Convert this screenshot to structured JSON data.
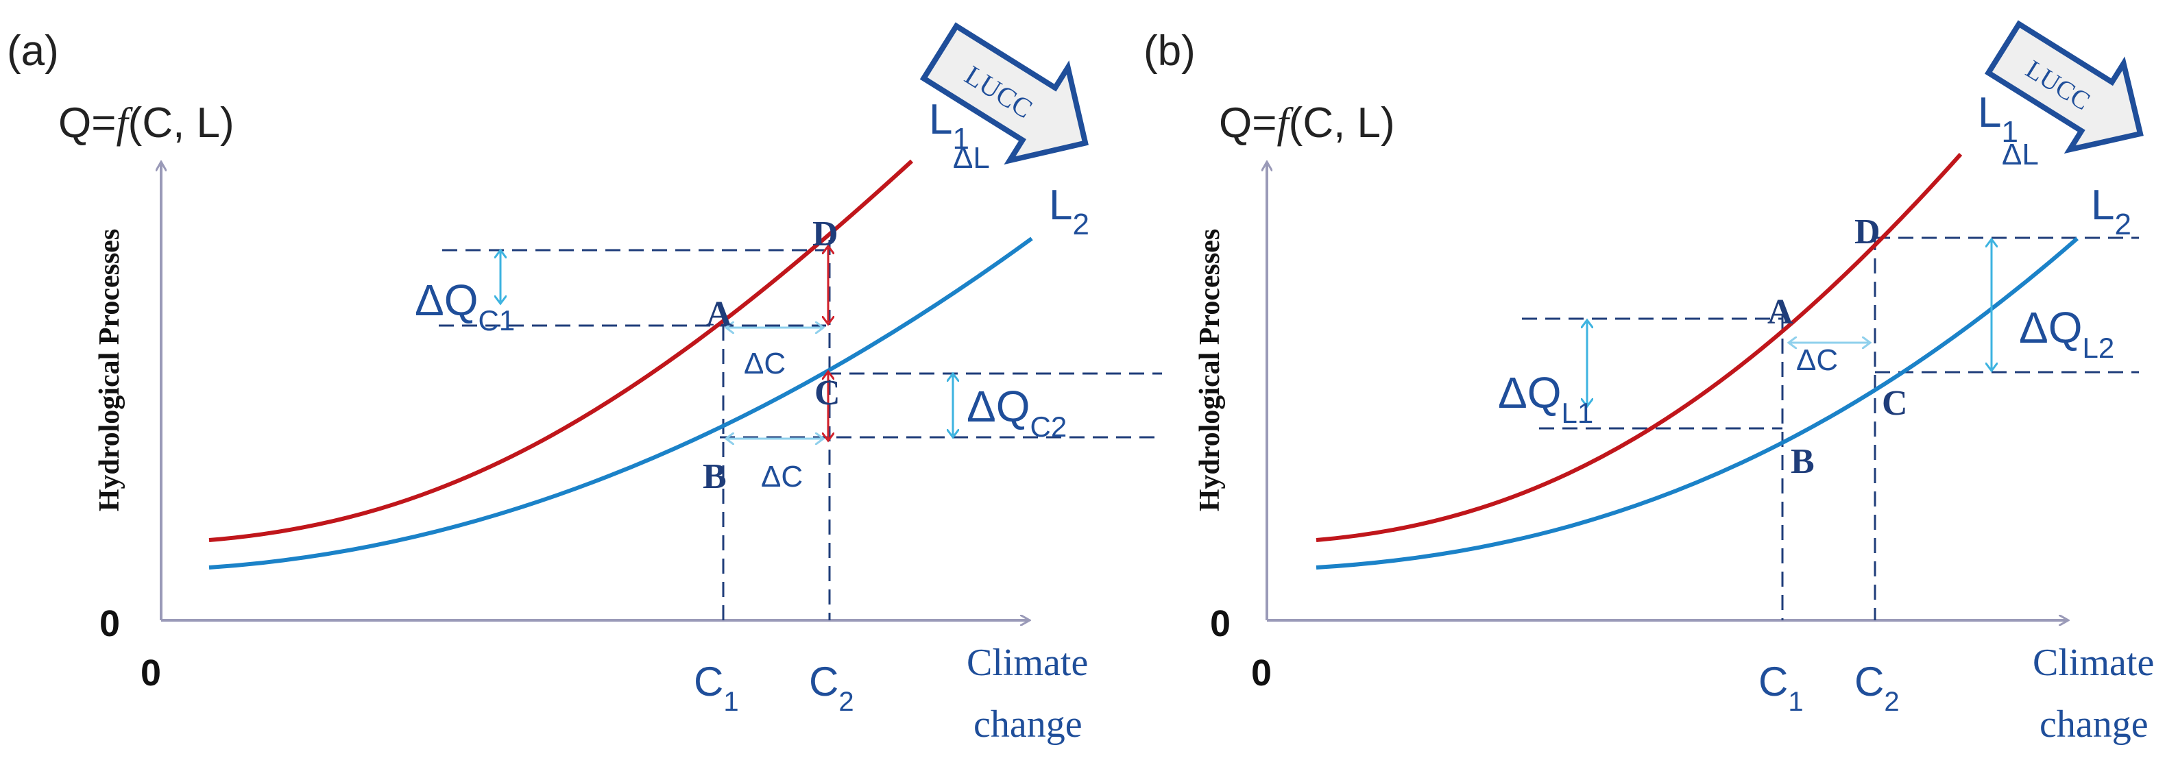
{
  "panel_a": {
    "label": "(a)",
    "formula": {
      "prefix": "Q=",
      "f": "f",
      "suffix": "(C, L)"
    },
    "y_axis_label": "Hydrological Processes",
    "x_axis_label_line1": "Climate",
    "x_axis_label_line2": "change",
    "origin_x": "0",
    "origin_y": "0",
    "tick_c1": {
      "base": "C",
      "sub": "1"
    },
    "tick_c2": {
      "base": "C",
      "sub": "2"
    },
    "curve_l1": {
      "base": "L",
      "sub": "1"
    },
    "curve_l2": {
      "base": "L",
      "sub": "2"
    },
    "delta_l": "ΔL",
    "arrow_text": "LUCC",
    "points": [
      "A",
      "B",
      "C",
      "D"
    ],
    "delta_c": "ΔC",
    "dq_c1": {
      "base": "ΔQ",
      "sub": "C1"
    },
    "dq_c2": {
      "base": "ΔQ",
      "sub": "C2"
    }
  },
  "panel_b": {
    "label": "(b)",
    "formula": {
      "prefix": "Q=",
      "f": "f",
      "suffix": "(C, L)"
    },
    "y_axis_label": "Hydrological Processes",
    "x_axis_label_line1": "Climate",
    "x_axis_label_line2": "change",
    "origin_x": "0",
    "origin_y": "0",
    "tick_c1": {
      "base": "C",
      "sub": "1"
    },
    "tick_c2": {
      "base": "C",
      "sub": "2"
    },
    "curve_l1": {
      "base": "L",
      "sub": "1"
    },
    "curve_l2": {
      "base": "L",
      "sub": "2"
    },
    "delta_l": "ΔL",
    "arrow_text": "LUCC",
    "points": [
      "A",
      "B",
      "C",
      "D"
    ],
    "delta_c": "ΔC",
    "dq_l1": {
      "base": "ΔQ",
      "sub": "L1"
    },
    "dq_l2": {
      "base": "ΔQ",
      "sub": "L2"
    }
  },
  "colors": {
    "curve_l1": "#C0161B",
    "curve_l2": "#1B82C8",
    "axis": "#9A9AB8",
    "dashed": "#1F3D7A",
    "delta_arrow": "#3DB3E0",
    "red_arrow": "#D0202A",
    "lucc_fill": "#EFEFEF",
    "lucc_stroke": "#1F4E9A"
  }
}
